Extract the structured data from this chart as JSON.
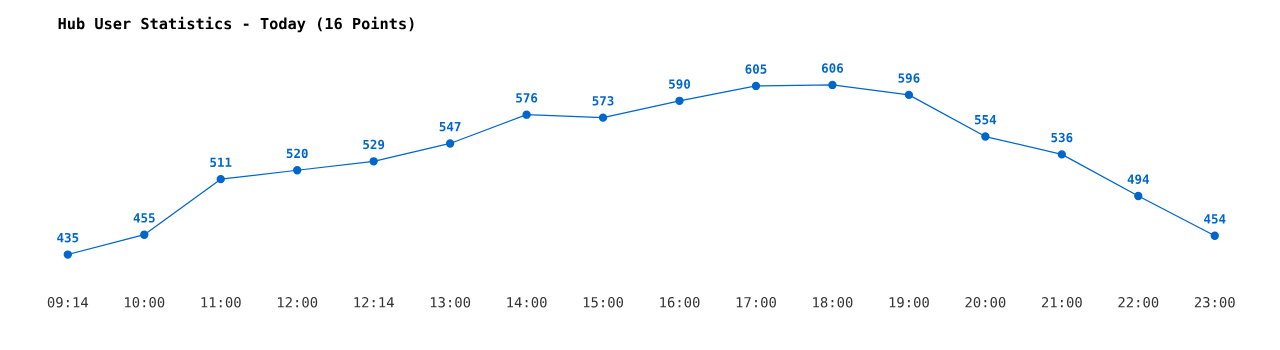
{
  "chart_data": {
    "type": "line",
    "title": "Hub User Statistics - Today (16 Points)",
    "categories": [
      "09:14",
      "10:00",
      "11:00",
      "12:00",
      "12:14",
      "13:00",
      "14:00",
      "15:00",
      "16:00",
      "17:00",
      "18:00",
      "19:00",
      "20:00",
      "21:00",
      "22:00",
      "23:00"
    ],
    "series": [
      {
        "color": "#0066cc",
        "values": [
          435,
          455,
          511,
          520,
          529,
          547,
          576,
          573,
          590,
          605,
          606,
          596,
          554,
          536,
          494,
          454
        ]
      }
    ],
    "data_labels": true,
    "marker": "circle",
    "line_style": "solid",
    "grid": false,
    "legend": false
  }
}
